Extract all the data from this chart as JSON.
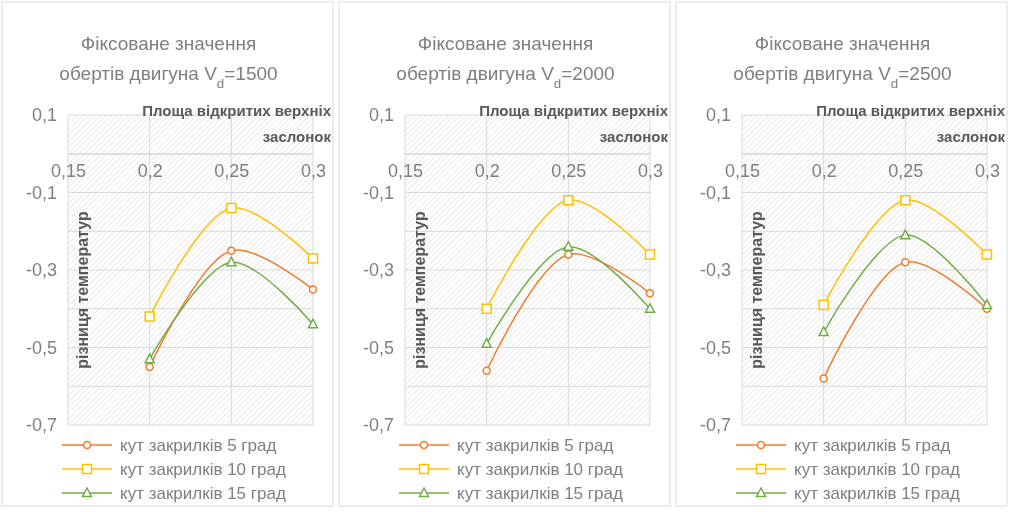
{
  "chart_data": [
    {
      "type": "line",
      "title": "Фіксоване значення обертів двигуна V$_{d}$=1500",
      "xlabel": "Площа відкритих верхніх заслонок",
      "ylabel": "різниця температур",
      "x": [
        0.2,
        0.25,
        0.3
      ],
      "xlim": [
        0.15,
        0.3
      ],
      "xticks": [
        {
          "value": 0.15,
          "label": "0,15"
        },
        {
          "value": 0.2,
          "label": "0,2"
        },
        {
          "value": 0.25,
          "label": "0,25"
        },
        {
          "value": 0.3,
          "label": "0,3"
        }
      ],
      "ylim": [
        -0.7,
        0.1
      ],
      "yticks": [
        {
          "value": 0.1,
          "label": "0,1"
        },
        {
          "value": 0,
          "label": null
        },
        {
          "value": -0.1,
          "label": "-0,1"
        },
        {
          "value": -0.2,
          "label": null
        },
        {
          "value": -0.3,
          "label": "-0,3"
        },
        {
          "value": -0.4,
          "label": null
        },
        {
          "value": -0.5,
          "label": "-0,5"
        },
        {
          "value": -0.6,
          "label": null
        },
        {
          "value": -0.7,
          "label": "-0,7"
        }
      ],
      "grid": true,
      "legend": "bottom",
      "series": [
        {
          "name": "кут закрилків 5 град",
          "color": "#ed7d31",
          "marker": "circle",
          "values": [
            -0.55,
            -0.25,
            -0.35
          ]
        },
        {
          "name": "кут закрилків 10 град",
          "color": "#ffc000",
          "marker": "square",
          "values": [
            -0.42,
            -0.14,
            -0.27
          ]
        },
        {
          "name": "кут закрилків 15 град",
          "color": "#70ad47",
          "marker": "triangle",
          "values": [
            -0.53,
            -0.28,
            -0.44
          ]
        }
      ]
    },
    {
      "type": "line",
      "title": "Фіксоване значення обертів двигуна V$_{d}$=2000",
      "xlabel": "Площа відкритих верхніх заслонок",
      "ylabel": "різниця температур",
      "x": [
        0.2,
        0.25,
        0.3
      ],
      "xlim": [
        0.15,
        0.3
      ],
      "xticks": [
        {
          "value": 0.15,
          "label": "0,15"
        },
        {
          "value": 0.2,
          "label": "0,2"
        },
        {
          "value": 0.25,
          "label": "0,25"
        },
        {
          "value": 0.3,
          "label": "0,3"
        }
      ],
      "ylim": [
        -0.7,
        0.1
      ],
      "yticks": [
        {
          "value": 0.1,
          "label": "0,1"
        },
        {
          "value": 0,
          "label": null
        },
        {
          "value": -0.1,
          "label": "-0,1"
        },
        {
          "value": -0.2,
          "label": null
        },
        {
          "value": -0.3,
          "label": "-0,3"
        },
        {
          "value": -0.4,
          "label": null
        },
        {
          "value": -0.5,
          "label": "-0,5"
        },
        {
          "value": -0.6,
          "label": null
        },
        {
          "value": -0.7,
          "label": "-0,7"
        }
      ],
      "grid": true,
      "legend": "bottom",
      "series": [
        {
          "name": "кут закрилків 5 град",
          "color": "#ed7d31",
          "marker": "circle",
          "values": [
            -0.56,
            -0.26,
            -0.36
          ]
        },
        {
          "name": "кут закрилків 10 град",
          "color": "#ffc000",
          "marker": "square",
          "values": [
            -0.4,
            -0.12,
            -0.26
          ]
        },
        {
          "name": "кут закрилків 15 град",
          "color": "#70ad47",
          "marker": "triangle",
          "values": [
            -0.49,
            -0.24,
            -0.4
          ]
        }
      ]
    },
    {
      "type": "line",
      "title": "Фіксоване значення обертів двигуна V$_{d}$=2500",
      "xlabel": "Площа відкритих верхніх заслонок",
      "ylabel": "різниця температур",
      "x": [
        0.2,
        0.25,
        0.3
      ],
      "xlim": [
        0.15,
        0.3
      ],
      "xticks": [
        {
          "value": 0.15,
          "label": "0,15"
        },
        {
          "value": 0.2,
          "label": "0,2"
        },
        {
          "value": 0.25,
          "label": "0,25"
        },
        {
          "value": 0.3,
          "label": "0,3"
        }
      ],
      "ylim": [
        -0.7,
        0.1
      ],
      "yticks": [
        {
          "value": 0.1,
          "label": "0,1"
        },
        {
          "value": 0,
          "label": null
        },
        {
          "value": -0.1,
          "label": "-0,1"
        },
        {
          "value": -0.2,
          "label": null
        },
        {
          "value": -0.3,
          "label": "-0,3"
        },
        {
          "value": -0.4,
          "label": null
        },
        {
          "value": -0.5,
          "label": "-0,5"
        },
        {
          "value": -0.6,
          "label": null
        },
        {
          "value": -0.7,
          "label": "-0,7"
        }
      ],
      "grid": true,
      "legend": "bottom",
      "series": [
        {
          "name": "кут закрилків 5 град",
          "color": "#ed7d31",
          "marker": "circle",
          "values": [
            -0.58,
            -0.28,
            -0.4
          ]
        },
        {
          "name": "кут закрилків 10 град",
          "color": "#ffc000",
          "marker": "square",
          "values": [
            -0.39,
            -0.12,
            -0.26
          ]
        },
        {
          "name": "кут закрилків 15 град",
          "color": "#70ad47",
          "marker": "triangle",
          "values": [
            -0.46,
            -0.21,
            -0.39
          ]
        }
      ]
    }
  ]
}
